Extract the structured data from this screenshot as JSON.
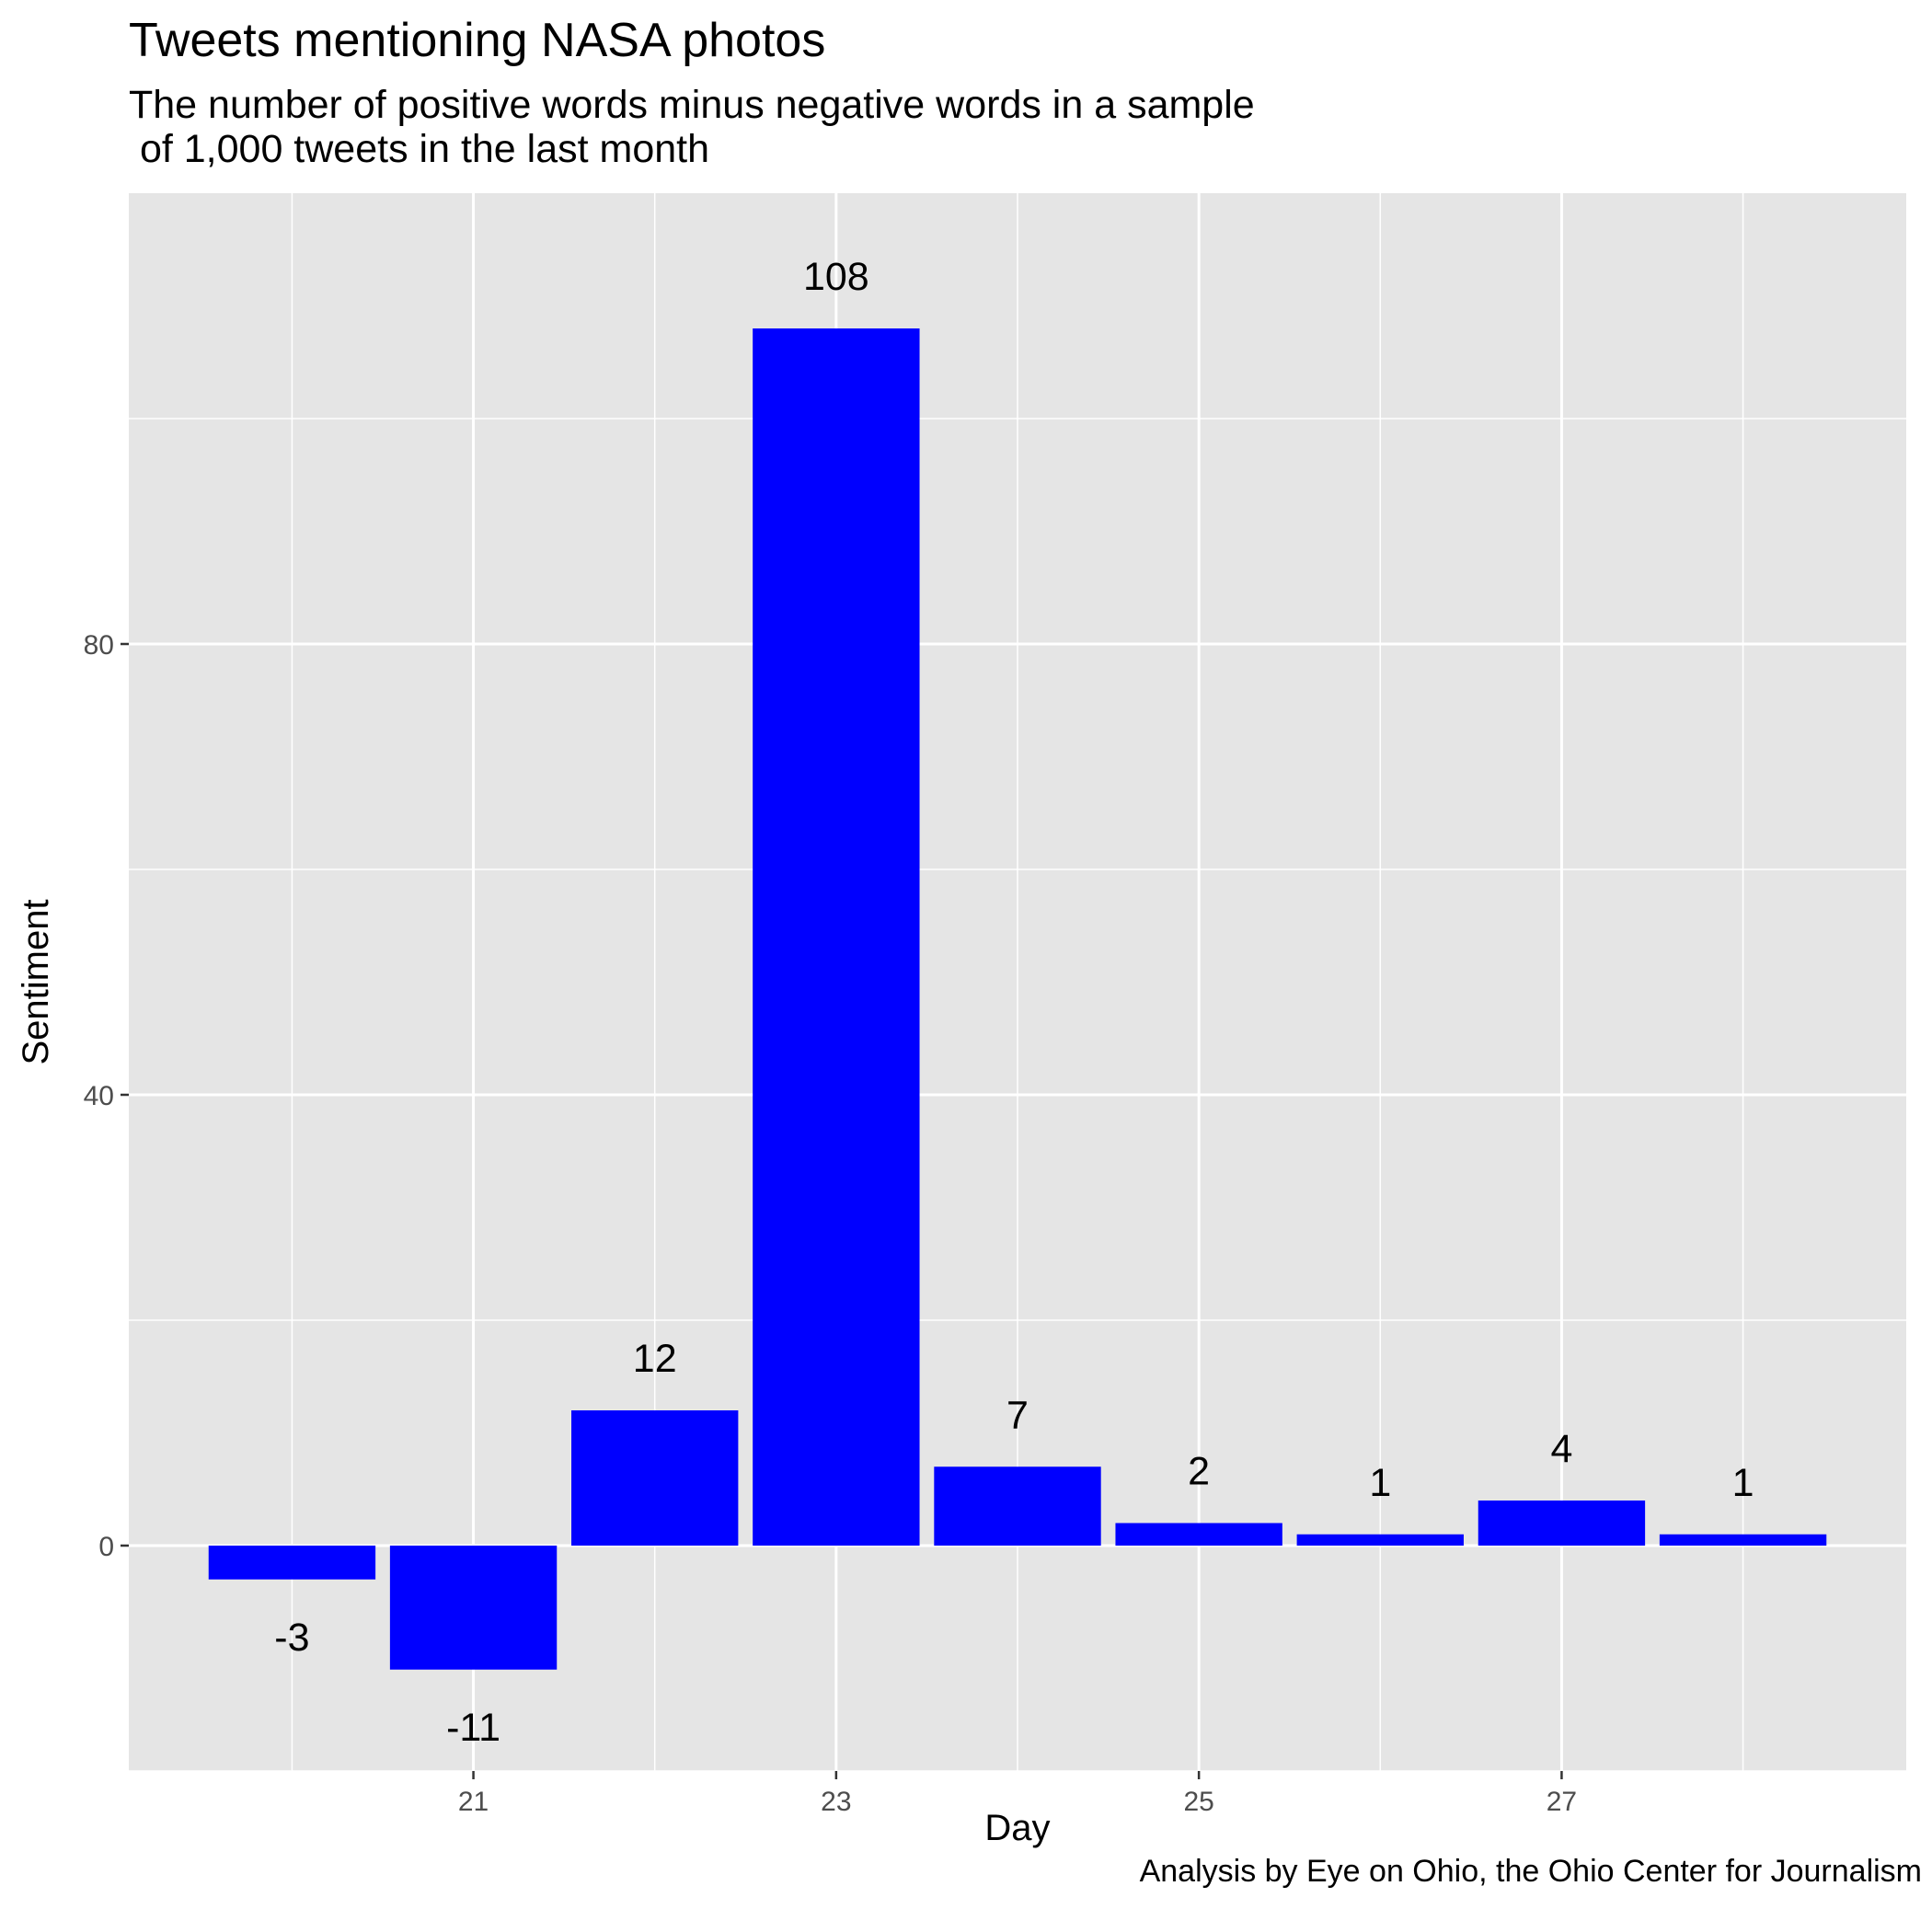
{
  "chart_data": {
    "type": "bar",
    "title": "Tweets mentioning NASA photos",
    "subtitle": "The number of positive words minus negative words in a sample\n of 1,000 tweets in the last month",
    "caption": "Analysis by Eye on Ohio, the Ohio Center for Journalism",
    "xlabel": "Day",
    "ylabel": "Sentiment",
    "x": [
      20,
      21,
      22,
      23,
      24,
      25,
      26,
      27,
      28
    ],
    "values": [
      -3,
      -11,
      12,
      108,
      7,
      2,
      1,
      4,
      1
    ],
    "x_ticks": [
      21,
      23,
      25,
      27
    ],
    "y_ticks": [
      0,
      40,
      80
    ],
    "xlim": [
      19.1,
      28.9
    ],
    "ylim": [
      -20,
      120
    ],
    "bar_color": "#0000ff",
    "panel_background": "#e5e5e5",
    "grid": true,
    "legend": "none"
  }
}
